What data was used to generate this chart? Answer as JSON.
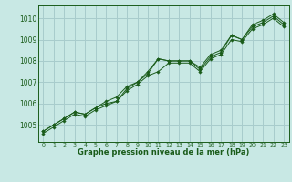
{
  "title": "Graphe pression niveau de la mer (hPa)",
  "bg_color": "#c8e8e4",
  "grid_color": "#a8cccc",
  "line_color": "#1a5c1a",
  "marker_color": "#1a5c1a",
  "xlim": [
    -0.5,
    23.5
  ],
  "ylim": [
    1004.2,
    1010.6
  ],
  "yticks": [
    1005,
    1006,
    1007,
    1008,
    1009,
    1010
  ],
  "xticks": [
    0,
    1,
    2,
    3,
    4,
    5,
    6,
    7,
    8,
    9,
    10,
    11,
    12,
    13,
    14,
    15,
    16,
    17,
    18,
    19,
    20,
    21,
    22,
    23
  ],
  "series": [
    [
      1004.7,
      1005.0,
      1005.3,
      1005.6,
      1005.5,
      1005.8,
      1006.0,
      1006.1,
      1006.7,
      1007.0,
      1007.4,
      1008.1,
      1008.0,
      1008.0,
      1008.0,
      1007.6,
      1008.2,
      1008.4,
      1009.2,
      1009.0,
      1009.6,
      1009.8,
      1010.1,
      1009.7
    ],
    [
      1004.7,
      1005.0,
      1005.3,
      1005.6,
      1005.5,
      1005.8,
      1006.1,
      1006.3,
      1006.8,
      1007.0,
      1007.5,
      1008.1,
      1008.0,
      1008.0,
      1008.0,
      1007.7,
      1008.3,
      1008.5,
      1009.2,
      1009.0,
      1009.7,
      1009.9,
      1010.2,
      1009.8
    ],
    [
      1004.6,
      1004.9,
      1005.2,
      1005.5,
      1005.4,
      1005.7,
      1005.9,
      1006.1,
      1006.6,
      1006.9,
      1007.3,
      1007.5,
      1007.9,
      1007.9,
      1007.9,
      1007.5,
      1008.1,
      1008.3,
      1009.0,
      1008.9,
      1009.5,
      1009.7,
      1010.0,
      1009.6
    ]
  ]
}
